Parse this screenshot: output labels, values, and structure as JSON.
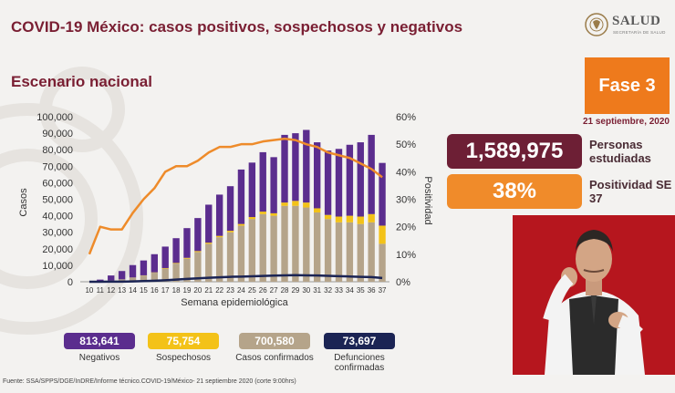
{
  "header": {
    "title": "COVID-19 México: casos positivos, sospechosos y negativos",
    "subtitle": "Escenario nacional",
    "logo_text": "SALUD",
    "logo_sub": "SECRETARÍA DE SALUD"
  },
  "side": {
    "phase": "Fase 3",
    "date": "21 septiembre, 2020",
    "studied_value": "1,589,975",
    "studied_label": "Personas estudiadas",
    "positivity_value": "38%",
    "positivity_label": "Positividad SE 37"
  },
  "legend": [
    {
      "value": "813,641",
      "label": "Negativos",
      "color": "#5b2d8e"
    },
    {
      "value": "75,754",
      "label": "Sospechosos",
      "color": "#f3c218"
    },
    {
      "value": "700,580",
      "label": "Casos confirmados",
      "color": "#b5a48a"
    },
    {
      "value": "73,697",
      "label": "Defunciones confirmadas",
      "color": "#1b2454"
    }
  ],
  "footer": {
    "source": "Fuente: SSA/SPPS/DGE/InDRE/Informe técnico.COVID-19/México- 21 septiembre 2020 (corte 9:00hrs)"
  },
  "chart_data": {
    "type": "bar",
    "stacked": true,
    "xlabel": "Semana epidemiológica",
    "ylabel": "Casos",
    "y2label": "Positividad",
    "ylim": [
      0,
      100000
    ],
    "y2lim": [
      0,
      60
    ],
    "yticks": [
      "0",
      "10,000",
      "20,000",
      "30,000",
      "40,000",
      "50,000",
      "60,000",
      "70,000",
      "80,000",
      "90,000",
      "100,000"
    ],
    "y2ticks": [
      "0%",
      "10%",
      "20%",
      "30%",
      "40%",
      "50%",
      "60%"
    ],
    "categories": [
      "10",
      "11",
      "12",
      "13",
      "14",
      "15",
      "16",
      "17",
      "18",
      "19",
      "20",
      "21",
      "22",
      "23",
      "24",
      "25",
      "26",
      "27",
      "28",
      "29",
      "30",
      "31",
      "32",
      "33",
      "34",
      "35",
      "36",
      "37"
    ],
    "series": [
      {
        "name": "Casos confirmados",
        "color": "#b5a48a",
        "values": [
          0,
          300,
          800,
          1500,
          2500,
          3800,
          5500,
          8000,
          11000,
          14000,
          18000,
          23000,
          27000,
          30000,
          34000,
          38000,
          41000,
          40000,
          46000,
          46000,
          45000,
          42000,
          38000,
          36000,
          36000,
          35000,
          36000,
          23000
        ]
      },
      {
        "name": "Sospechosos",
        "color": "#f3c218",
        "values": [
          0,
          0,
          0,
          0,
          100,
          100,
          200,
          300,
          400,
          500,
          600,
          700,
          800,
          900,
          1000,
          1200,
          1500,
          1500,
          2000,
          3000,
          3000,
          2500,
          2500,
          3500,
          4000,
          4500,
          5000,
          11000
        ]
      },
      {
        "name": "Negativos",
        "color": "#5b2d8e",
        "values": [
          0,
          1000,
          3000,
          5000,
          7500,
          9000,
          11000,
          13000,
          15000,
          18000,
          20000,
          23000,
          25000,
          27000,
          33000,
          33000,
          36000,
          34000,
          41000,
          41000,
          44000,
          40000,
          39000,
          41000,
          43000,
          45000,
          48000,
          38000
        ]
      },
      {
        "name": "Defunciones confirmadas",
        "type": "line",
        "color": "#1b2454",
        "values": [
          0,
          0,
          50,
          100,
          200,
          400,
          600,
          900,
          1300,
          1700,
          2100,
          2400,
          2700,
          3000,
          3100,
          3300,
          3500,
          3700,
          3900,
          4000,
          3900,
          3800,
          3600,
          3400,
          3200,
          3000,
          2800,
          2300
        ]
      },
      {
        "name": "Positividad",
        "type": "line",
        "axis": "right",
        "color": "#ee8b2a",
        "values": [
          10,
          20,
          19,
          19,
          25,
          30,
          34,
          40,
          42,
          42,
          44,
          47,
          49,
          49,
          50,
          50,
          51,
          51.5,
          52,
          51.5,
          50,
          49,
          47,
          46,
          45,
          43,
          41,
          38
        ]
      }
    ]
  }
}
